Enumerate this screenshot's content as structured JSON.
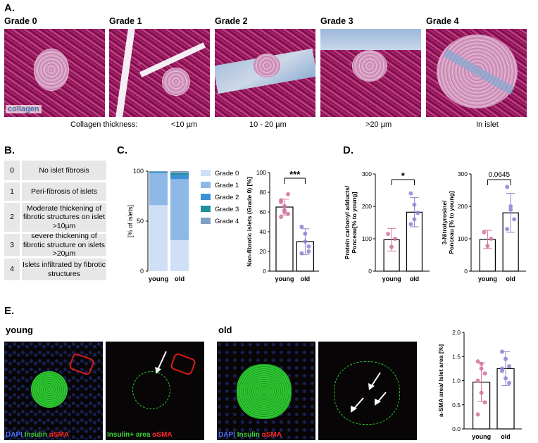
{
  "panelA": {
    "letter": "A.",
    "grades": [
      "Grade 0",
      "Grade 1",
      "Grade 2",
      "Grade 3",
      "Grade 4"
    ],
    "collagen_tag": "collagen",
    "thickness_label": "Collagen thickness:",
    "thickness_values": [
      "<10 µm",
      "10 - 20 µm",
      ">20 µm",
      "In islet"
    ]
  },
  "panelB": {
    "letter": "B.",
    "rows": [
      {
        "grade": "0",
        "text": "No islet fibrosis"
      },
      {
        "grade": "1",
        "text": "Peri-fibrosis of islets"
      },
      {
        "grade": "2",
        "text": "Moderate thickening of fibrotic structures on islet >10µm"
      },
      {
        "grade": "3",
        "text": "severe thickening of fibrotic structure on islets >20µm"
      },
      {
        "grade": "4",
        "text": "Islets infiltrated by fibrotic structures"
      }
    ]
  },
  "panelC": {
    "letter": "C."
  },
  "panelD": {
    "letter": "D."
  },
  "panelE": {
    "letter": "E.",
    "young": "young",
    "old": "old",
    "stain_dapi": "DAPI",
    "stain_insulin": "Insulin",
    "stain_sma": "αSMA",
    "insulin_area": "Insulin+ area"
  },
  "chart_data": [
    {
      "id": "C-stacked",
      "type": "bar",
      "ylabel": "[% of islets]",
      "ylim": [
        0,
        100
      ],
      "yticks": [
        "0",
        "50",
        "100"
      ],
      "categories": [
        "young",
        "old"
      ],
      "series": [
        {
          "name": "Grade 0",
          "values": [
            66,
            31
          ],
          "color": "#cfe0f6"
        },
        {
          "name": "Grade 1",
          "values": [
            32,
            61
          ],
          "color": "#8db8e8"
        },
        {
          "name": "Grade 2",
          "values": [
            1,
            4
          ],
          "color": "#3f8fd8"
        },
        {
          "name": "Grade 3",
          "values": [
            0.5,
            2
          ],
          "color": "#1f8f9c"
        },
        {
          "name": "Grade 4",
          "values": [
            0.5,
            2
          ],
          "color": "#7f9fc4"
        }
      ]
    },
    {
      "id": "C-nonfibrotic",
      "type": "bar",
      "ylabel": "Non-fibrotic islets (Grade 0) [%]",
      "ylim": [
        0,
        100
      ],
      "yticks": [
        "0",
        "20",
        "40",
        "60",
        "80",
        "100"
      ],
      "categories": [
        "young",
        "old"
      ],
      "values": [
        65,
        30
      ],
      "errors": [
        8,
        13
      ],
      "significance": "***",
      "points": [
        [
          70,
          62,
          78,
          55,
          66,
          58,
          72,
          60
        ],
        [
          45,
          38,
          25,
          18,
          30,
          20
        ]
      ],
      "colors": [
        "#d4729f",
        "#8a86d0"
      ]
    },
    {
      "id": "D-carbonyl",
      "type": "bar",
      "ylabel": "Protein carbonyl adducts/ Ponceau[% to young]",
      "ylim": [
        0,
        300
      ],
      "yticks": [
        "0",
        "100",
        "200",
        "300"
      ],
      "categories": [
        "young",
        "old"
      ],
      "values": [
        97,
        182
      ],
      "errors": [
        35,
        45
      ],
      "significance": "*",
      "points": [
        [
          115,
          75,
          100
        ],
        [
          240,
          205,
          180,
          145,
          160
        ]
      ],
      "colors": [
        "#d4729f",
        "#8a86d0"
      ]
    },
    {
      "id": "D-nitrotyrosine",
      "type": "bar",
      "ylabel": "3-Nitrotyrosine/ Ponceau [% to young]",
      "ylim": [
        0,
        300
      ],
      "yticks": [
        "0",
        "100",
        "200",
        "300"
      ],
      "categories": [
        "young",
        "old"
      ],
      "values": [
        98,
        180
      ],
      "errors": [
        28,
        60
      ],
      "significance": "0.0645",
      "points": [
        [
          120,
          78,
          100
        ],
        [
          260,
          200,
          160,
          130,
          190
        ]
      ],
      "colors": [
        "#d4729f",
        "#8a86d0"
      ]
    },
    {
      "id": "E-sma",
      "type": "bar",
      "ylabel": "a-SMA area/ Islet area [%]",
      "ylim": [
        0,
        2.0
      ],
      "yticks": [
        "0.0",
        "0.5",
        "1.0",
        "1.5",
        "2.0"
      ],
      "categories": [
        "young",
        "old"
      ],
      "values": [
        0.97,
        1.25
      ],
      "errors": [
        0.4,
        0.35
      ],
      "points": [
        [
          1.4,
          1.35,
          1.15,
          1.0,
          0.75,
          0.55,
          0.3,
          1.25
        ],
        [
          1.6,
          1.45,
          1.3,
          1.2,
          1.05,
          0.95,
          1.25
        ]
      ],
      "colors": [
        "#d4729f",
        "#8a86d0"
      ]
    }
  ]
}
